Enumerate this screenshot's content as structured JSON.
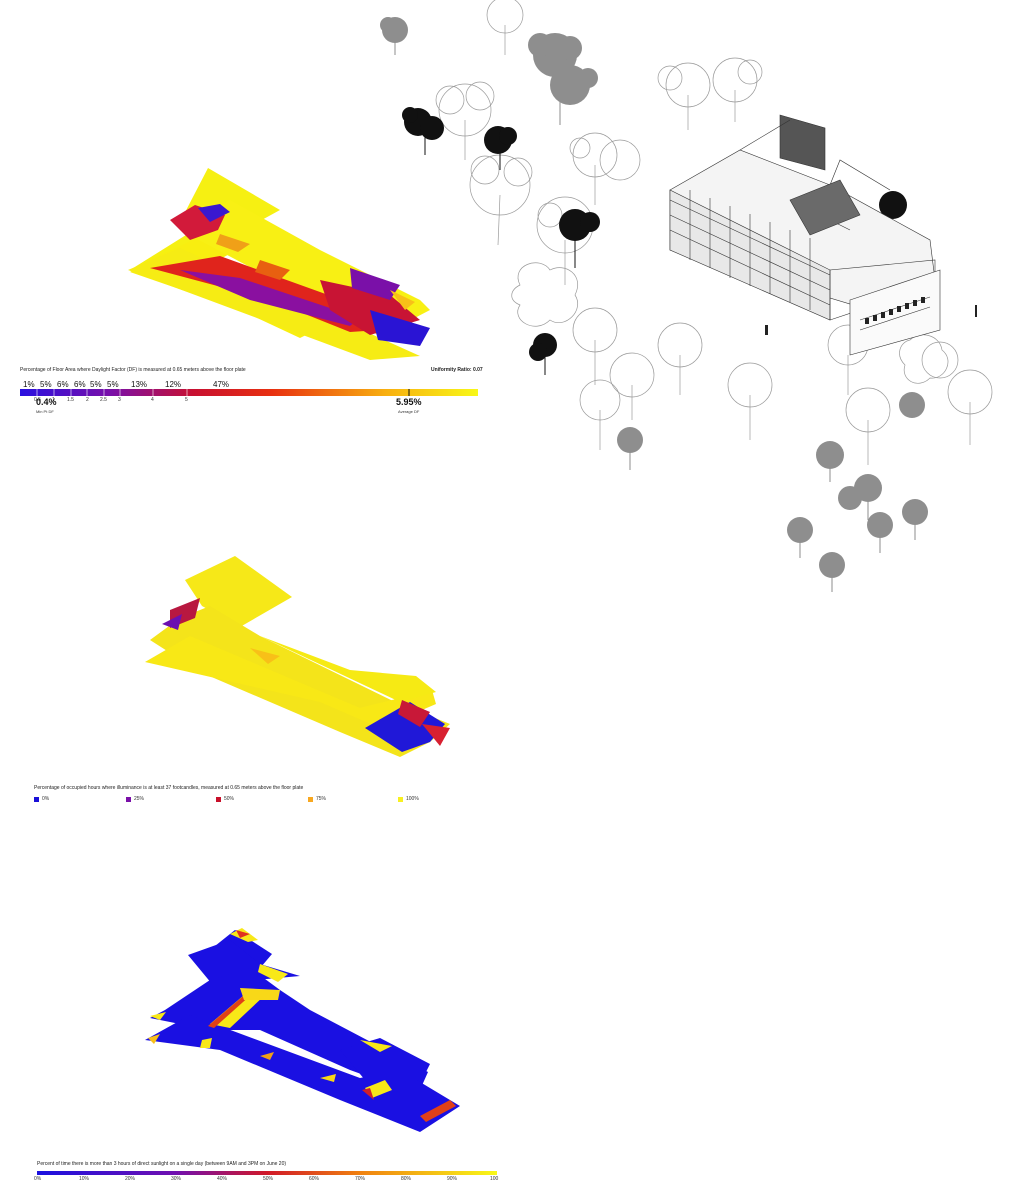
{
  "panel1": {
    "caption": "Percentage of Floor Area where Daylight Factor (DF) is measured at 0.65 meters above the floor plate",
    "uniformity": "Uniformity Ratio: 0.07",
    "percents": [
      "1%",
      "5%",
      "6%",
      "6%",
      "5%",
      "5%",
      "13%",
      "12%",
      "47%"
    ],
    "ticks": [
      "0.5",
      "1",
      "1.5",
      "2",
      "2.5",
      "3",
      "4",
      "5"
    ],
    "min_value": "0.4%",
    "min_label": "Min Pt DF",
    "avg_value": "5.95%",
    "avg_label": "Average DF"
  },
  "panel2": {
    "caption": "Percentage of occupied hours where illuminance is at least 37 footcandles, measured at 0.65 meters above the floor plate",
    "legend": [
      {
        "label": "0%",
        "color": "#1a10d8"
      },
      {
        "label": "25%",
        "color": "#7a10a8"
      },
      {
        "label": "50%",
        "color": "#c8102a"
      },
      {
        "label": "75%",
        "color": "#f8a820"
      },
      {
        "label": "100%",
        "color": "#f8f020"
      }
    ]
  },
  "panel3": {
    "caption": "Percent of time there is more than 3 hours of direct sunlight on a single day (between 9AM and 3PM on June 20)",
    "ticks": [
      "0%",
      "10%",
      "20%",
      "30%",
      "40%",
      "50%",
      "60%",
      "70%",
      "80%",
      "90%",
      "100"
    ]
  },
  "colors": {
    "blue": "#1a10e0",
    "purple": "#7010b0",
    "red": "#d01828",
    "orange": "#f07010",
    "yellow": "#f8f010"
  }
}
